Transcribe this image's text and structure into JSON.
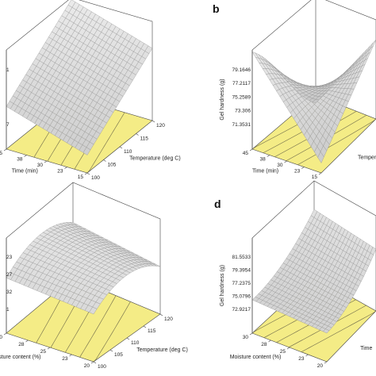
{
  "colors": {
    "base_plane": "#f4ec86",
    "surface": "#cfcfcf",
    "mesh": "#8f8f8f",
    "frame": "#444444"
  },
  "chart_data": [
    {
      "panel": "a",
      "panel_label": "",
      "type": "surface",
      "x_label": "Temperature (deg C)",
      "x_ticks": [
        "100",
        "105",
        "110",
        "115",
        "120"
      ],
      "y_label": "Time (min)",
      "y_ticks": [
        "15",
        "23",
        "30",
        "38",
        "45"
      ],
      "z_label": "",
      "z_ticks": [
        "7",
        "1"
      ],
      "xlim": [
        100,
        120
      ],
      "ylim": [
        15,
        45
      ],
      "shape": "planar rising toward high temperature and high time"
    },
    {
      "panel": "b",
      "panel_label": "b",
      "type": "surface",
      "x_label": "Temperature (deg C)",
      "x_ticks": [],
      "y_label": "Time (min)",
      "y_ticks": [
        "15",
        "23",
        "30",
        "38",
        "45"
      ],
      "z_label": "Gel hardness (g)",
      "z_ticks": [
        "71.3531",
        "73.306",
        "75.2589",
        "77.2117",
        "79.1646"
      ],
      "zlim": [
        71.3531,
        79.1646
      ],
      "xlim": [
        100,
        120
      ],
      "ylim": [
        15,
        45
      ],
      "shape": "saddle"
    },
    {
      "panel": "c",
      "panel_label": "",
      "type": "surface",
      "x_label": "Temperature (deg C)",
      "x_ticks": [
        "100",
        "105",
        "110",
        "115",
        "120"
      ],
      "y_label": "isture content (%)",
      "y_ticks": [
        "20",
        "23",
        "25",
        "28",
        "30"
      ],
      "z_label": "",
      "z_ticks": [
        "1",
        "32",
        "27",
        "23"
      ],
      "xlim": [
        100,
        120
      ],
      "ylim": [
        20,
        30
      ],
      "shape": "dome"
    },
    {
      "panel": "d",
      "panel_label": "d",
      "type": "surface",
      "x_label": "Time",
      "x_ticks": [],
      "y_label": "Moisture content (%)",
      "y_ticks": [
        "20",
        "23",
        "25",
        "28",
        "30"
      ],
      "z_label": "Gel hardness (g)",
      "z_ticks": [
        "72.9217",
        "75.0796",
        "77.2375",
        "79.3954",
        "81.5533"
      ],
      "zlim": [
        72.9217,
        81.5533
      ],
      "xlim": [
        15,
        45
      ],
      "ylim": [
        20,
        30
      ],
      "shape": "rising toward high time"
    }
  ]
}
